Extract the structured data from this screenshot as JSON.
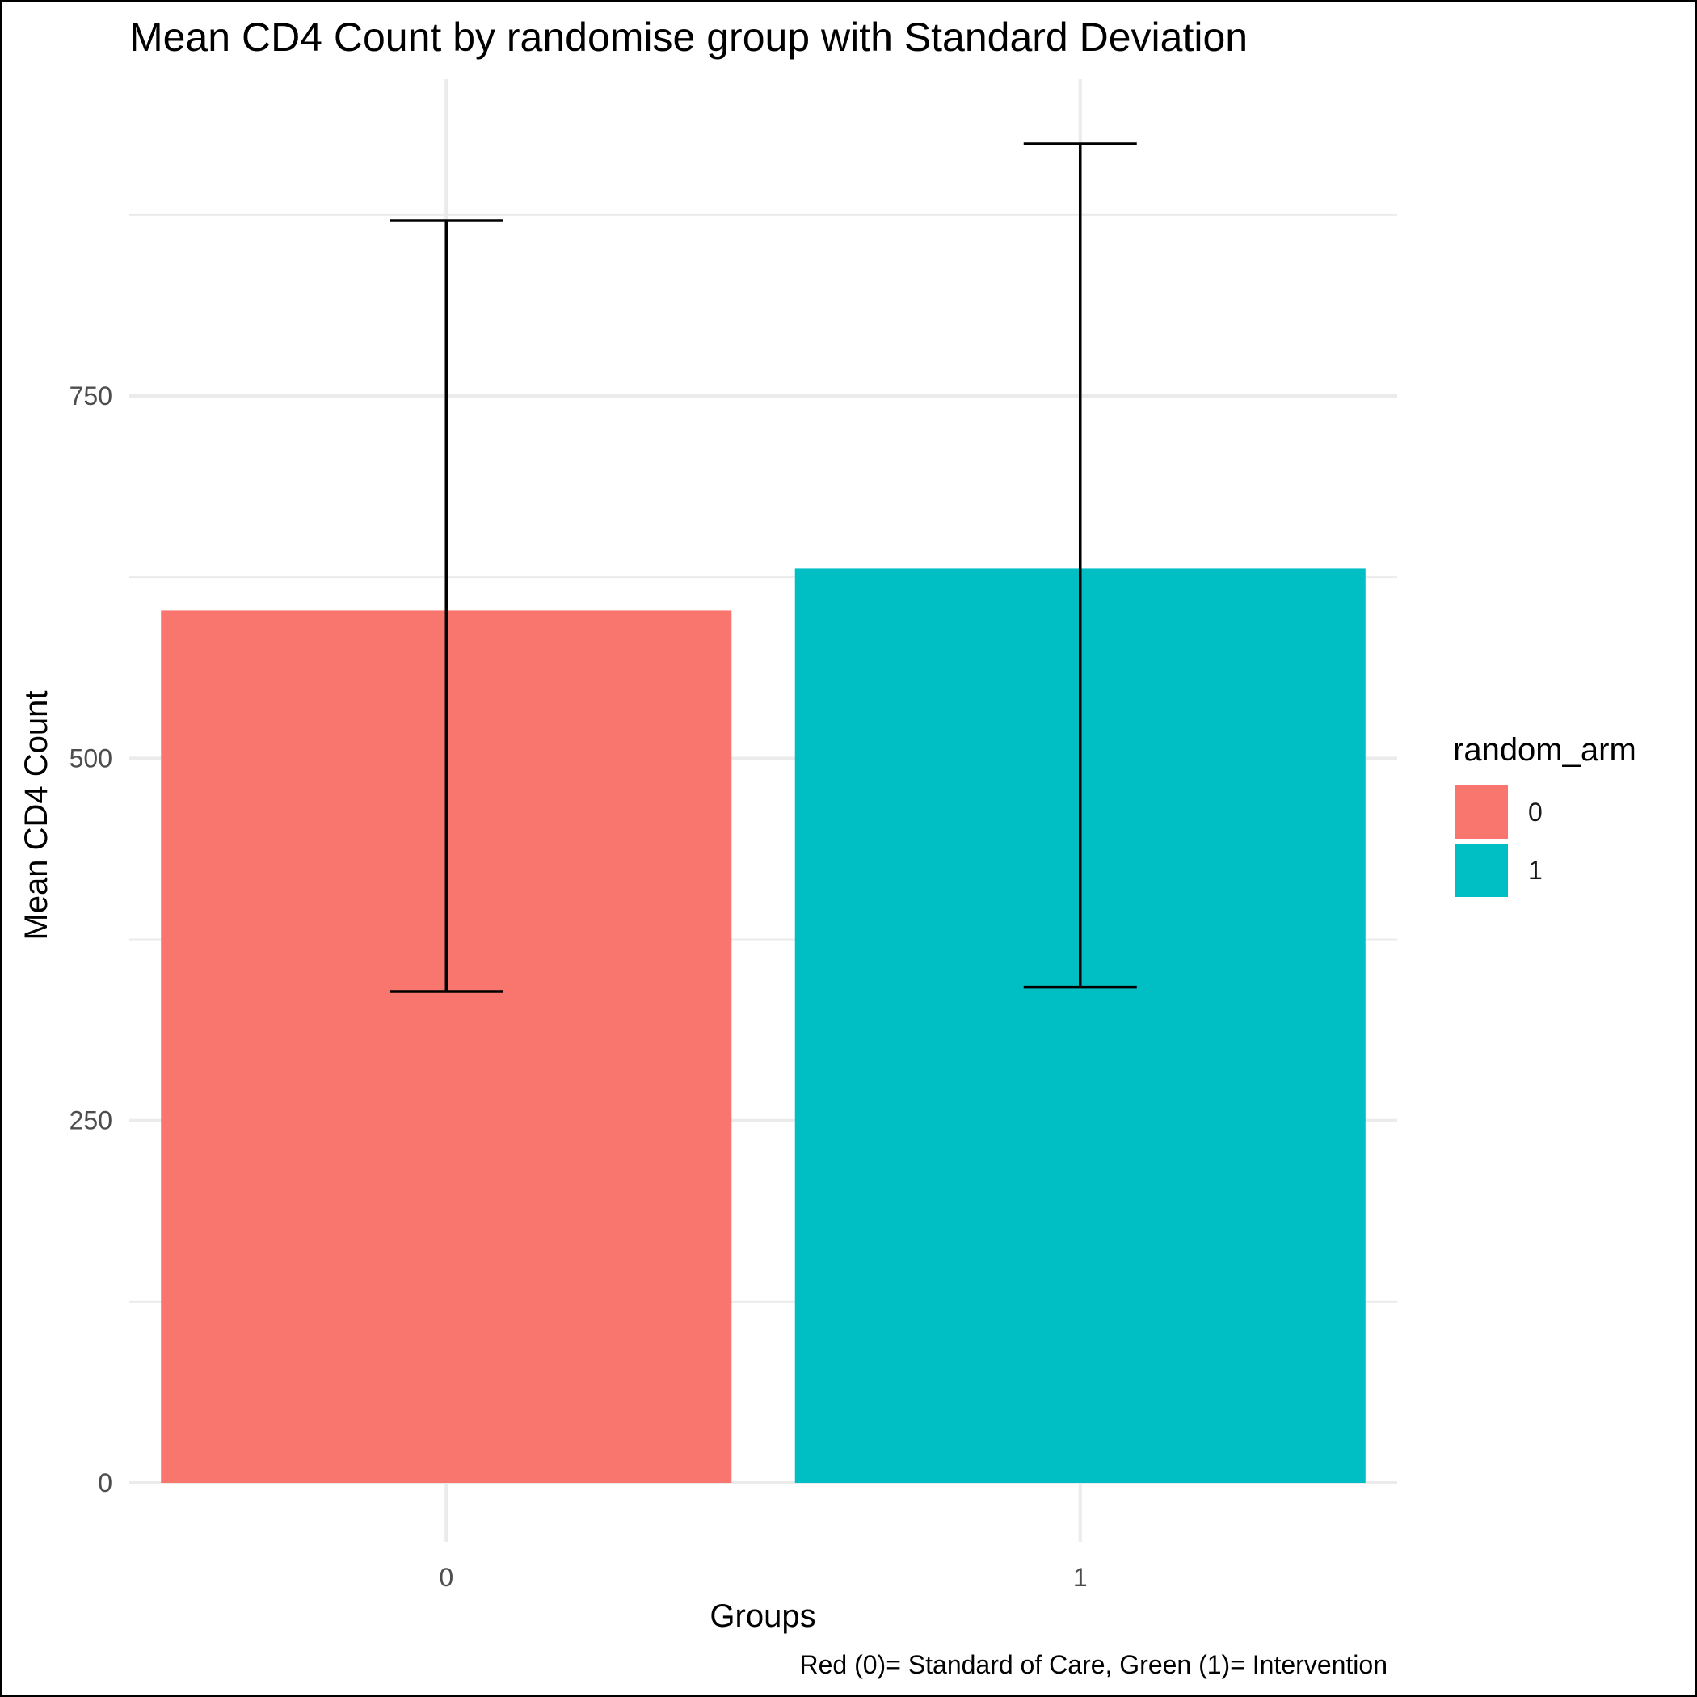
{
  "chart_data": {
    "type": "bar",
    "title": "Mean CD4 Count by randomise group with Standard Deviation",
    "xlabel": "Groups",
    "ylabel": "Mean CD4 Count",
    "caption": "Red (0)= Standard of Care, Green (1)= Intervention",
    "categories": [
      "0",
      "1"
    ],
    "values": [
      602,
      631
    ],
    "error_bars": {
      "lower": [
        339,
        342
      ],
      "upper": [
        871,
        924
      ]
    },
    "colors": [
      "#F8766D",
      "#00BFC4"
    ],
    "ylim": [
      0,
      970
    ],
    "yticks": [
      0,
      250,
      500,
      750
    ],
    "y_minor_ticks": [
      125,
      375,
      625,
      875
    ],
    "grid": true,
    "legend": {
      "title": "random_arm",
      "position": "right",
      "entries": [
        {
          "label": "0",
          "color": "#F8766D"
        },
        {
          "label": "1",
          "color": "#00BFC4"
        }
      ]
    }
  }
}
